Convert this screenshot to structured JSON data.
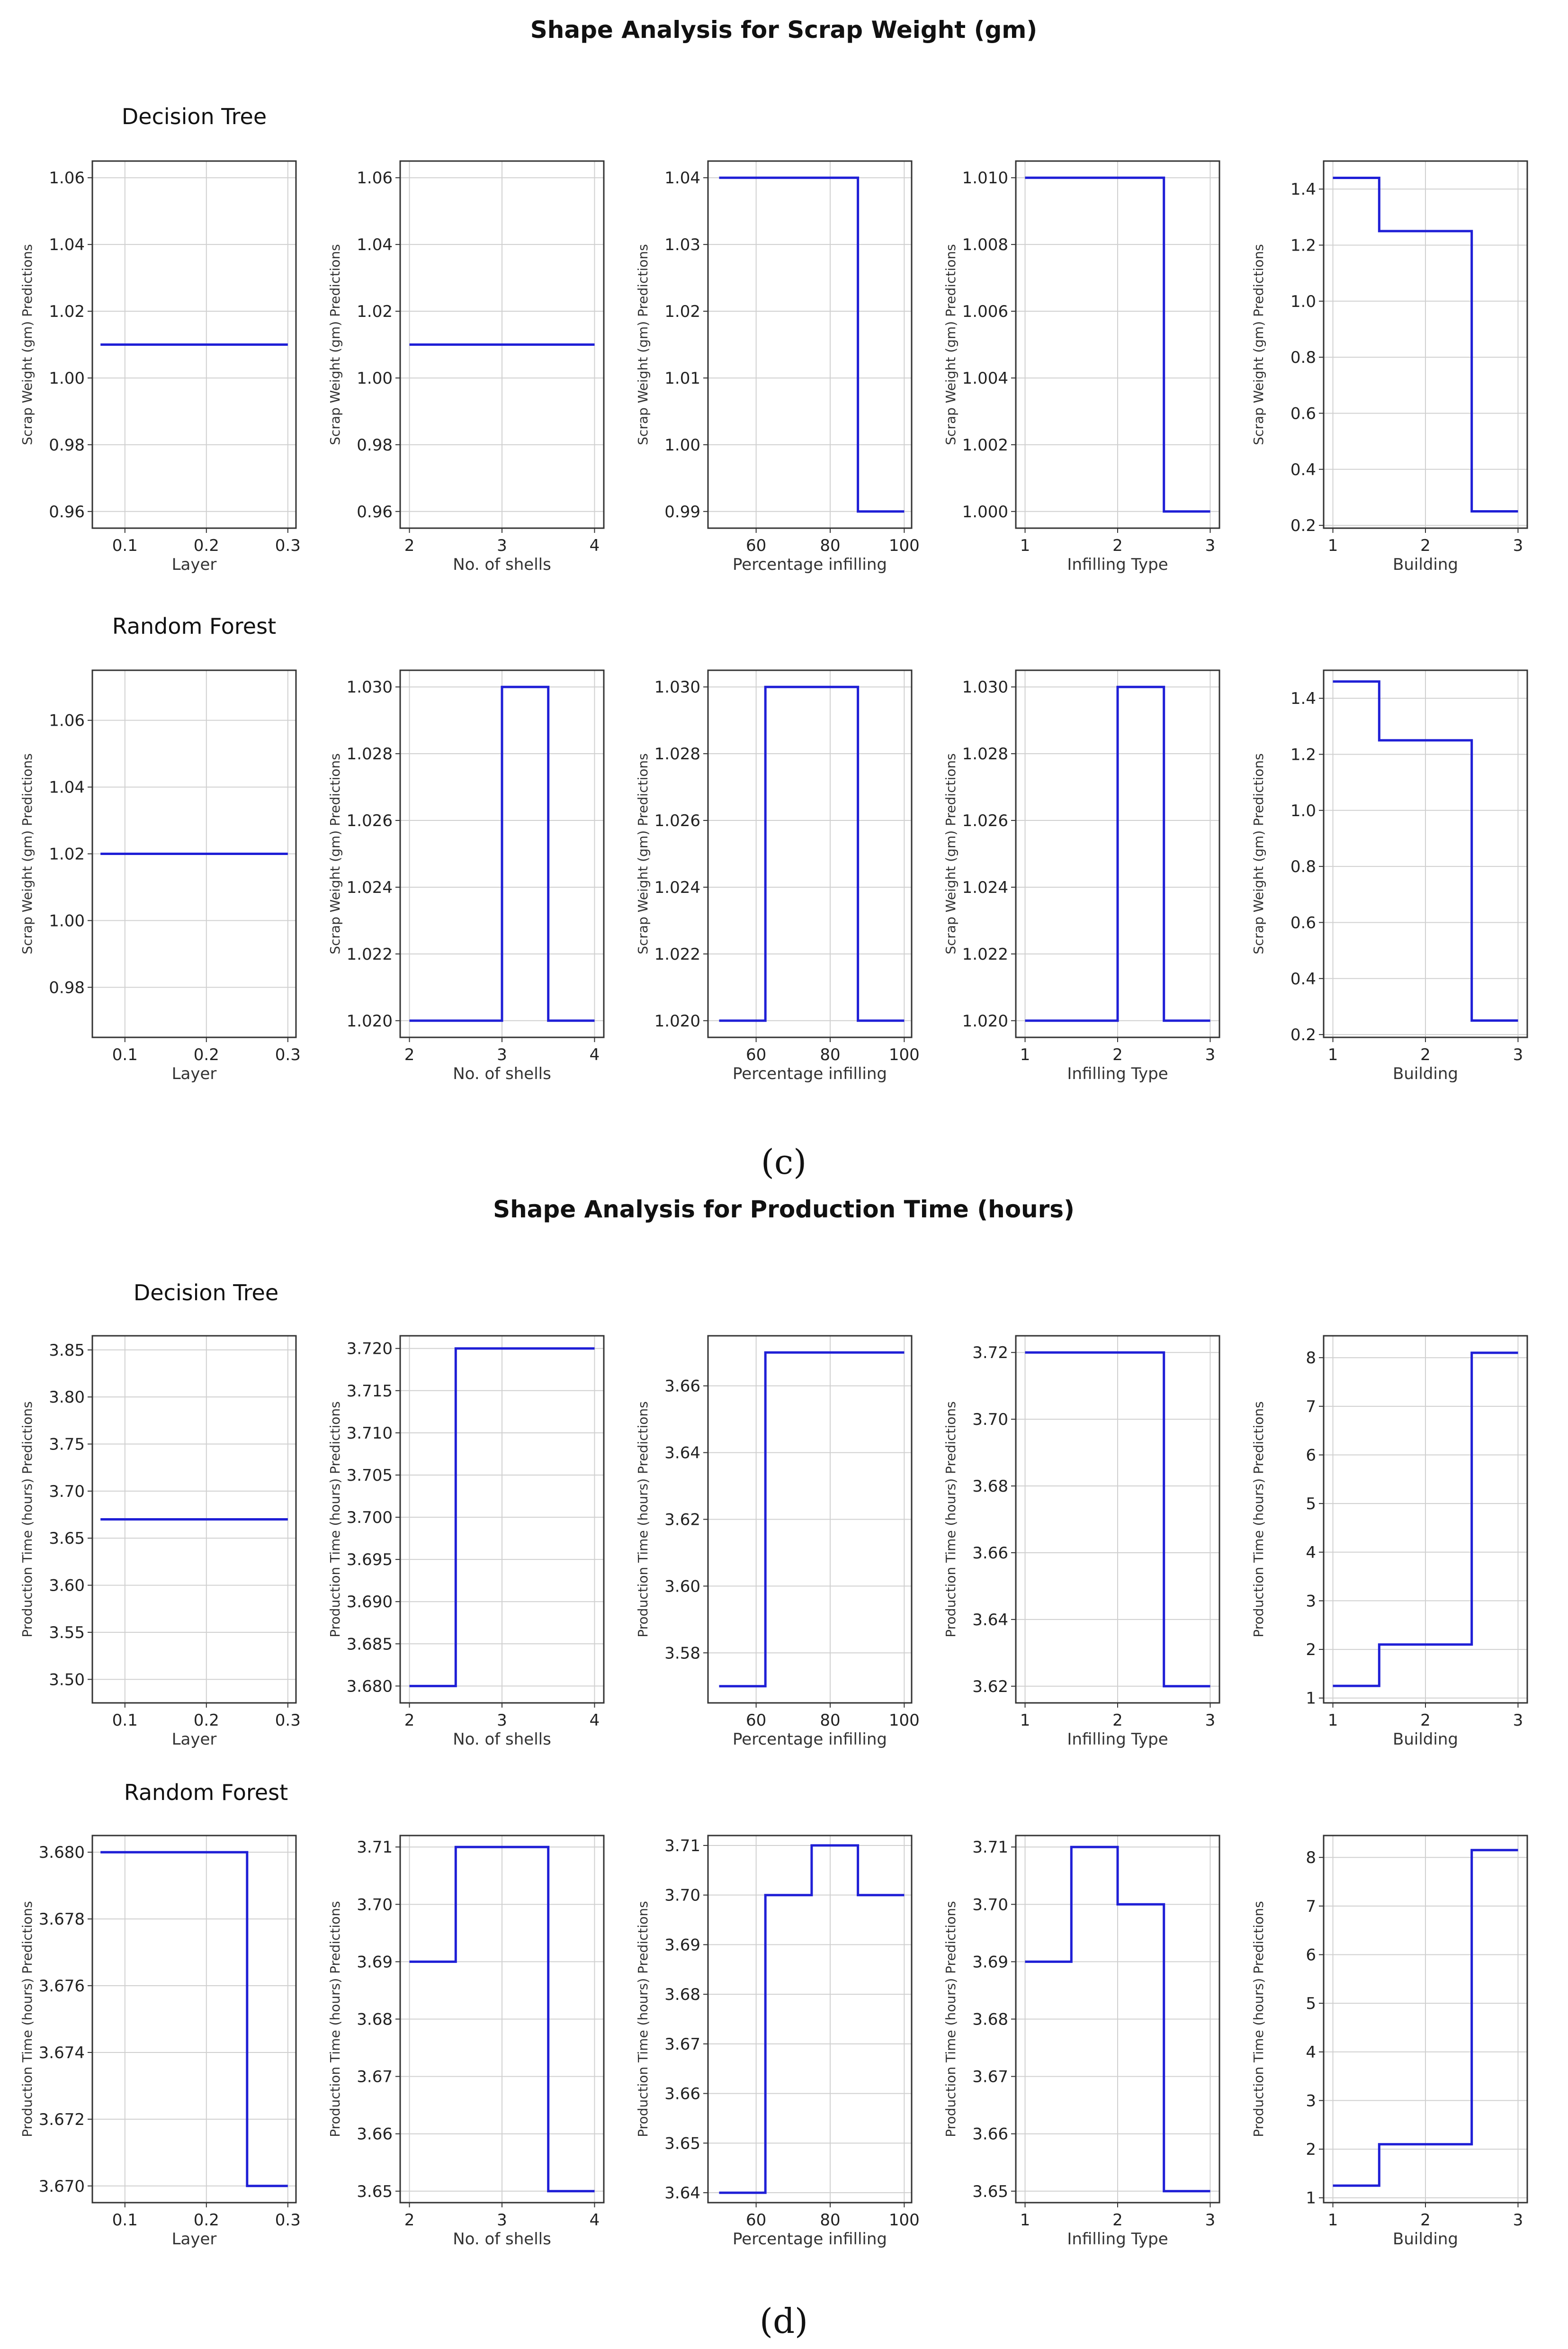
{
  "sections": [
    {
      "title": "Shape Analysis for Scrap Weight (gm)",
      "caption": "(c)",
      "models": [
        "Decision Tree",
        "Random Forest"
      ]
    },
    {
      "title": "Shape Analysis for Production Time (hours)",
      "caption": "(d)",
      "models": [
        "Decision Tree",
        "Random Forest"
      ]
    }
  ],
  "chart_data": [
    {
      "type": "line",
      "section": 0,
      "row": 0,
      "xlabel": "Layer",
      "ylabel": "Scrap Weight (gm) Predictions",
      "xlim": [
        0.06,
        0.31
      ],
      "xticks": [
        0.1,
        0.2,
        0.3
      ],
      "xtick_labels": [
        "0.1",
        "0.2",
        "0.3"
      ],
      "ylim": [
        0.955,
        1.065
      ],
      "yticks": [
        0.96,
        0.98,
        1.0,
        1.02,
        1.04,
        1.06
      ],
      "ytick_labels": [
        "0.96",
        "0.98",
        "1.00",
        "1.02",
        "1.04",
        "1.06"
      ],
      "x": [
        0.07,
        0.3
      ],
      "y": [
        1.01,
        1.01
      ]
    },
    {
      "type": "line",
      "section": 0,
      "row": 0,
      "xlabel": "No. of shells",
      "ylabel": "Scrap Weight (gm) Predictions",
      "xlim": [
        1.9,
        4.1
      ],
      "xticks": [
        2,
        3,
        4
      ],
      "xtick_labels": [
        "2",
        "3",
        "4"
      ],
      "ylim": [
        0.955,
        1.065
      ],
      "yticks": [
        0.96,
        0.98,
        1.0,
        1.02,
        1.04,
        1.06
      ],
      "ytick_labels": [
        "0.96",
        "0.98",
        "1.00",
        "1.02",
        "1.04",
        "1.06"
      ],
      "x": [
        2,
        4
      ],
      "y": [
        1.01,
        1.01
      ]
    },
    {
      "type": "line",
      "section": 0,
      "row": 0,
      "xlabel": "Percentage infilling",
      "ylabel": "Scrap Weight (gm) Predictions",
      "xlim": [
        47,
        102
      ],
      "xticks": [
        60,
        80,
        100
      ],
      "xtick_labels": [
        "60",
        "80",
        "100"
      ],
      "ylim": [
        0.9875,
        1.0425
      ],
      "yticks": [
        0.99,
        1.0,
        1.01,
        1.02,
        1.03,
        1.04
      ],
      "ytick_labels": [
        "0.99",
        "1.00",
        "1.01",
        "1.02",
        "1.03",
        "1.04"
      ],
      "x": [
        50,
        87.5,
        87.5,
        100
      ],
      "y": [
        1.04,
        1.04,
        0.99,
        0.99
      ]
    },
    {
      "type": "line",
      "section": 0,
      "row": 0,
      "xlabel": "Infilling Type",
      "ylabel": "Scrap Weight (gm) Predictions",
      "xlim": [
        0.9,
        3.1
      ],
      "xticks": [
        1,
        2,
        3
      ],
      "xtick_labels": [
        "1",
        "2",
        "3"
      ],
      "ylim": [
        0.9995,
        1.0105
      ],
      "yticks": [
        1.0,
        1.002,
        1.004,
        1.006,
        1.008,
        1.01
      ],
      "ytick_labels": [
        "1.000",
        "1.002",
        "1.004",
        "1.006",
        "1.008",
        "1.010"
      ],
      "x": [
        1,
        2.5,
        2.5,
        3
      ],
      "y": [
        1.01,
        1.01,
        1.0,
        1.0
      ]
    },
    {
      "type": "line",
      "section": 0,
      "row": 0,
      "xlabel": "Building",
      "ylabel": "Scrap Weight (gm) Predictions",
      "xlim": [
        0.9,
        3.1
      ],
      "xticks": [
        1,
        2,
        3
      ],
      "xtick_labels": [
        "1",
        "2",
        "3"
      ],
      "ylim": [
        0.19,
        1.5
      ],
      "yticks": [
        0.2,
        0.4,
        0.6,
        0.8,
        1.0,
        1.2,
        1.4
      ],
      "ytick_labels": [
        "0.2",
        "0.4",
        "0.6",
        "0.8",
        "1.0",
        "1.2",
        "1.4"
      ],
      "x": [
        1,
        1.5,
        1.5,
        2.5,
        2.5,
        3
      ],
      "y": [
        1.44,
        1.44,
        1.25,
        1.25,
        0.25,
        0.25
      ]
    },
    {
      "type": "line",
      "section": 0,
      "row": 1,
      "xlabel": "Layer",
      "ylabel": "Scrap Weight (gm) Predictions",
      "xlim": [
        0.06,
        0.31
      ],
      "xticks": [
        0.1,
        0.2,
        0.3
      ],
      "xtick_labels": [
        "0.1",
        "0.2",
        "0.3"
      ],
      "ylim": [
        0.965,
        1.075
      ],
      "yticks": [
        0.98,
        1.0,
        1.02,
        1.04,
        1.06
      ],
      "ytick_labels": [
        "0.98",
        "1.00",
        "1.02",
        "1.04",
        "1.06"
      ],
      "x": [
        0.07,
        0.3
      ],
      "y": [
        1.02,
        1.02
      ]
    },
    {
      "type": "line",
      "section": 0,
      "row": 1,
      "xlabel": "No. of shells",
      "ylabel": "Scrap Weight (gm) Predictions",
      "xlim": [
        1.9,
        4.1
      ],
      "xticks": [
        2,
        3,
        4
      ],
      "xtick_labels": [
        "2",
        "3",
        "4"
      ],
      "ylim": [
        1.0195,
        1.0305
      ],
      "yticks": [
        1.02,
        1.022,
        1.024,
        1.026,
        1.028,
        1.03
      ],
      "ytick_labels": [
        "1.020",
        "1.022",
        "1.024",
        "1.026",
        "1.028",
        "1.030"
      ],
      "x": [
        2,
        3,
        3,
        3.5,
        3.5,
        4
      ],
      "y": [
        1.02,
        1.02,
        1.03,
        1.03,
        1.02,
        1.02
      ]
    },
    {
      "type": "line",
      "section": 0,
      "row": 1,
      "xlabel": "Percentage infilling",
      "ylabel": "Scrap Weight (gm) Predictions",
      "xlim": [
        47,
        102
      ],
      "xticks": [
        60,
        80,
        100
      ],
      "xtick_labels": [
        "60",
        "80",
        "100"
      ],
      "ylim": [
        1.0195,
        1.0305
      ],
      "yticks": [
        1.02,
        1.022,
        1.024,
        1.026,
        1.028,
        1.03
      ],
      "ytick_labels": [
        "1.020",
        "1.022",
        "1.024",
        "1.026",
        "1.028",
        "1.030"
      ],
      "x": [
        50,
        62.5,
        62.5,
        87.5,
        87.5,
        100
      ],
      "y": [
        1.02,
        1.02,
        1.03,
        1.03,
        1.02,
        1.02
      ]
    },
    {
      "type": "line",
      "section": 0,
      "row": 1,
      "xlabel": "Infilling Type",
      "ylabel": "Scrap Weight (gm) Predictions",
      "xlim": [
        0.9,
        3.1
      ],
      "xticks": [
        1,
        2,
        3
      ],
      "xtick_labels": [
        "1",
        "2",
        "3"
      ],
      "ylim": [
        1.0195,
        1.0305
      ],
      "yticks": [
        1.02,
        1.022,
        1.024,
        1.026,
        1.028,
        1.03
      ],
      "ytick_labels": [
        "1.020",
        "1.022",
        "1.024",
        "1.026",
        "1.028",
        "1.030"
      ],
      "x": [
        1,
        2,
        2,
        2.5,
        2.5,
        3
      ],
      "y": [
        1.02,
        1.02,
        1.03,
        1.03,
        1.02,
        1.02
      ]
    },
    {
      "type": "line",
      "section": 0,
      "row": 1,
      "xlabel": "Building",
      "ylabel": "Scrap Weight (gm) Predictions",
      "xlim": [
        0.9,
        3.1
      ],
      "xticks": [
        1,
        2,
        3
      ],
      "xtick_labels": [
        "1",
        "2",
        "3"
      ],
      "ylim": [
        0.19,
        1.5
      ],
      "yticks": [
        0.2,
        0.4,
        0.6,
        0.8,
        1.0,
        1.2,
        1.4
      ],
      "ytick_labels": [
        "0.2",
        "0.4",
        "0.6",
        "0.8",
        "1.0",
        "1.2",
        "1.4"
      ],
      "x": [
        1,
        1.5,
        1.5,
        2.5,
        2.5,
        3
      ],
      "y": [
        1.46,
        1.46,
        1.25,
        1.25,
        0.25,
        0.25
      ]
    },
    {
      "type": "line",
      "section": 1,
      "row": 0,
      "xlabel": "Layer",
      "ylabel": "Production Time (hours) Predictions",
      "xlim": [
        0.06,
        0.31
      ],
      "xticks": [
        0.1,
        0.2,
        0.3
      ],
      "xtick_labels": [
        "0.1",
        "0.2",
        "0.3"
      ],
      "ylim": [
        3.475,
        3.865
      ],
      "yticks": [
        3.5,
        3.55,
        3.6,
        3.65,
        3.7,
        3.75,
        3.8,
        3.85
      ],
      "ytick_labels": [
        "3.50",
        "3.55",
        "3.60",
        "3.65",
        "3.70",
        "3.75",
        "3.80",
        "3.85"
      ],
      "x": [
        0.07,
        0.3
      ],
      "y": [
        3.67,
        3.67
      ]
    },
    {
      "type": "line",
      "section": 1,
      "row": 0,
      "xlabel": "No. of shells",
      "ylabel": "Production Time (hours) Predictions",
      "xlim": [
        1.9,
        4.1
      ],
      "xticks": [
        2,
        3,
        4
      ],
      "xtick_labels": [
        "2",
        "3",
        "4"
      ],
      "ylim": [
        3.678,
        3.7215
      ],
      "yticks": [
        3.68,
        3.685,
        3.69,
        3.695,
        3.7,
        3.705,
        3.71,
        3.715,
        3.72
      ],
      "ytick_labels": [
        "3.680",
        "3.685",
        "3.690",
        "3.695",
        "3.700",
        "3.705",
        "3.710",
        "3.715",
        "3.720"
      ],
      "x": [
        2,
        2.5,
        2.5,
        4
      ],
      "y": [
        3.68,
        3.68,
        3.72,
        3.72
      ]
    },
    {
      "type": "line",
      "section": 1,
      "row": 0,
      "xlabel": "Percentage infilling",
      "ylabel": "Production Time (hours) Predictions",
      "xlim": [
        47,
        102
      ],
      "xticks": [
        60,
        80,
        100
      ],
      "xtick_labels": [
        "60",
        "80",
        "100"
      ],
      "ylim": [
        3.565,
        3.675
      ],
      "yticks": [
        3.58,
        3.6,
        3.62,
        3.64,
        3.66
      ],
      "ytick_labels": [
        "3.58",
        "3.60",
        "3.62",
        "3.64",
        "3.66"
      ],
      "x": [
        50,
        62.5,
        62.5,
        100
      ],
      "y": [
        3.57,
        3.57,
        3.67,
        3.67
      ]
    },
    {
      "type": "line",
      "section": 1,
      "row": 0,
      "xlabel": "Infilling Type",
      "ylabel": "Production Time (hours) Predictions",
      "xlim": [
        0.9,
        3.1
      ],
      "xticks": [
        1,
        2,
        3
      ],
      "xtick_labels": [
        "1",
        "2",
        "3"
      ],
      "ylim": [
        3.615,
        3.725
      ],
      "yticks": [
        3.62,
        3.64,
        3.66,
        3.68,
        3.7,
        3.72
      ],
      "ytick_labels": [
        "3.62",
        "3.64",
        "3.66",
        "3.68",
        "3.70",
        "3.72"
      ],
      "x": [
        1,
        2.5,
        2.5,
        3
      ],
      "y": [
        3.72,
        3.72,
        3.62,
        3.62
      ]
    },
    {
      "type": "line",
      "section": 1,
      "row": 0,
      "xlabel": "Building",
      "ylabel": "Production Time (hours) Predictions",
      "xlim": [
        0.9,
        3.1
      ],
      "xticks": [
        1,
        2,
        3
      ],
      "xtick_labels": [
        "1",
        "2",
        "3"
      ],
      "ylim": [
        0.9,
        8.45
      ],
      "yticks": [
        1,
        2,
        3,
        4,
        5,
        6,
        7,
        8
      ],
      "ytick_labels": [
        "1",
        "2",
        "3",
        "4",
        "5",
        "6",
        "7",
        "8"
      ],
      "x": [
        1,
        1.5,
        1.5,
        2.5,
        2.5,
        3
      ],
      "y": [
        1.25,
        1.25,
        2.1,
        2.1,
        8.1,
        8.1
      ]
    },
    {
      "type": "line",
      "section": 1,
      "row": 1,
      "xlabel": "Layer",
      "ylabel": "Production Time (hours) Predictions",
      "xlim": [
        0.06,
        0.31
      ],
      "xticks": [
        0.1,
        0.2,
        0.3
      ],
      "xtick_labels": [
        "0.1",
        "0.2",
        "0.3"
      ],
      "ylim": [
        3.6695,
        3.6805
      ],
      "yticks": [
        3.67,
        3.672,
        3.674,
        3.676,
        3.678,
        3.68
      ],
      "ytick_labels": [
        "3.670",
        "3.672",
        "3.674",
        "3.676",
        "3.678",
        "3.680"
      ],
      "x": [
        0.07,
        0.25,
        0.25,
        0.3
      ],
      "y": [
        3.68,
        3.68,
        3.67,
        3.67
      ]
    },
    {
      "type": "line",
      "section": 1,
      "row": 1,
      "xlabel": "No. of shells",
      "ylabel": "Production Time (hours) Predictions",
      "xlim": [
        1.9,
        4.1
      ],
      "xticks": [
        2,
        3,
        4
      ],
      "xtick_labels": [
        "2",
        "3",
        "4"
      ],
      "ylim": [
        3.648,
        3.712
      ],
      "yticks": [
        3.65,
        3.66,
        3.67,
        3.68,
        3.69,
        3.7,
        3.71
      ],
      "ytick_labels": [
        "3.65",
        "3.66",
        "3.67",
        "3.68",
        "3.69",
        "3.70",
        "3.71"
      ],
      "x": [
        2,
        2.5,
        2.5,
        3.5,
        3.5,
        4
      ],
      "y": [
        3.69,
        3.69,
        3.71,
        3.71,
        3.65,
        3.65
      ]
    },
    {
      "type": "line",
      "section": 1,
      "row": 1,
      "xlabel": "Percentage infilling",
      "ylabel": "Production Time (hours) Predictions",
      "xlim": [
        47,
        102
      ],
      "xticks": [
        60,
        80,
        100
      ],
      "xtick_labels": [
        "60",
        "80",
        "100"
      ],
      "ylim": [
        3.638,
        3.712
      ],
      "yticks": [
        3.64,
        3.65,
        3.66,
        3.67,
        3.68,
        3.69,
        3.7,
        3.71
      ],
      "ytick_labels": [
        "3.64",
        "3.65",
        "3.66",
        "3.67",
        "3.68",
        "3.69",
        "3.70",
        "3.71"
      ],
      "x": [
        50,
        62.5,
        62.5,
        75,
        75,
        87.5,
        87.5,
        100
      ],
      "y": [
        3.64,
        3.64,
        3.7,
        3.7,
        3.71,
        3.71,
        3.7,
        3.7
      ]
    },
    {
      "type": "line",
      "section": 1,
      "row": 1,
      "xlabel": "Infilling Type",
      "ylabel": "Production Time (hours) Predictions",
      "xlim": [
        0.9,
        3.1
      ],
      "xticks": [
        1,
        2,
        3
      ],
      "xtick_labels": [
        "1",
        "2",
        "3"
      ],
      "ylim": [
        3.648,
        3.712
      ],
      "yticks": [
        3.65,
        3.66,
        3.67,
        3.68,
        3.69,
        3.7,
        3.71
      ],
      "ytick_labels": [
        "3.65",
        "3.66",
        "3.67",
        "3.68",
        "3.69",
        "3.70",
        "3.71"
      ],
      "x": [
        1,
        1.5,
        1.5,
        2,
        2,
        2.5,
        2.5,
        3
      ],
      "y": [
        3.69,
        3.69,
        3.71,
        3.71,
        3.7,
        3.7,
        3.65,
        3.65
      ]
    },
    {
      "type": "line",
      "section": 1,
      "row": 1,
      "xlabel": "Building",
      "ylabel": "Production Time (hours) Predictions",
      "xlim": [
        0.9,
        3.1
      ],
      "xticks": [
        1,
        2,
        3
      ],
      "xtick_labels": [
        "1",
        "2",
        "3"
      ],
      "ylim": [
        0.9,
        8.45
      ],
      "yticks": [
        1,
        2,
        3,
        4,
        5,
        6,
        7,
        8
      ],
      "ytick_labels": [
        "1",
        "2",
        "3",
        "4",
        "5",
        "6",
        "7",
        "8"
      ],
      "x": [
        1,
        1.5,
        1.5,
        2.5,
        2.5,
        3
      ],
      "y": [
        1.25,
        1.25,
        2.1,
        2.1,
        8.15,
        8.15
      ]
    }
  ],
  "style": {
    "line_color": "#1f1fd6",
    "grid_color": "#d0d0d0",
    "frame_color": "#333333"
  }
}
